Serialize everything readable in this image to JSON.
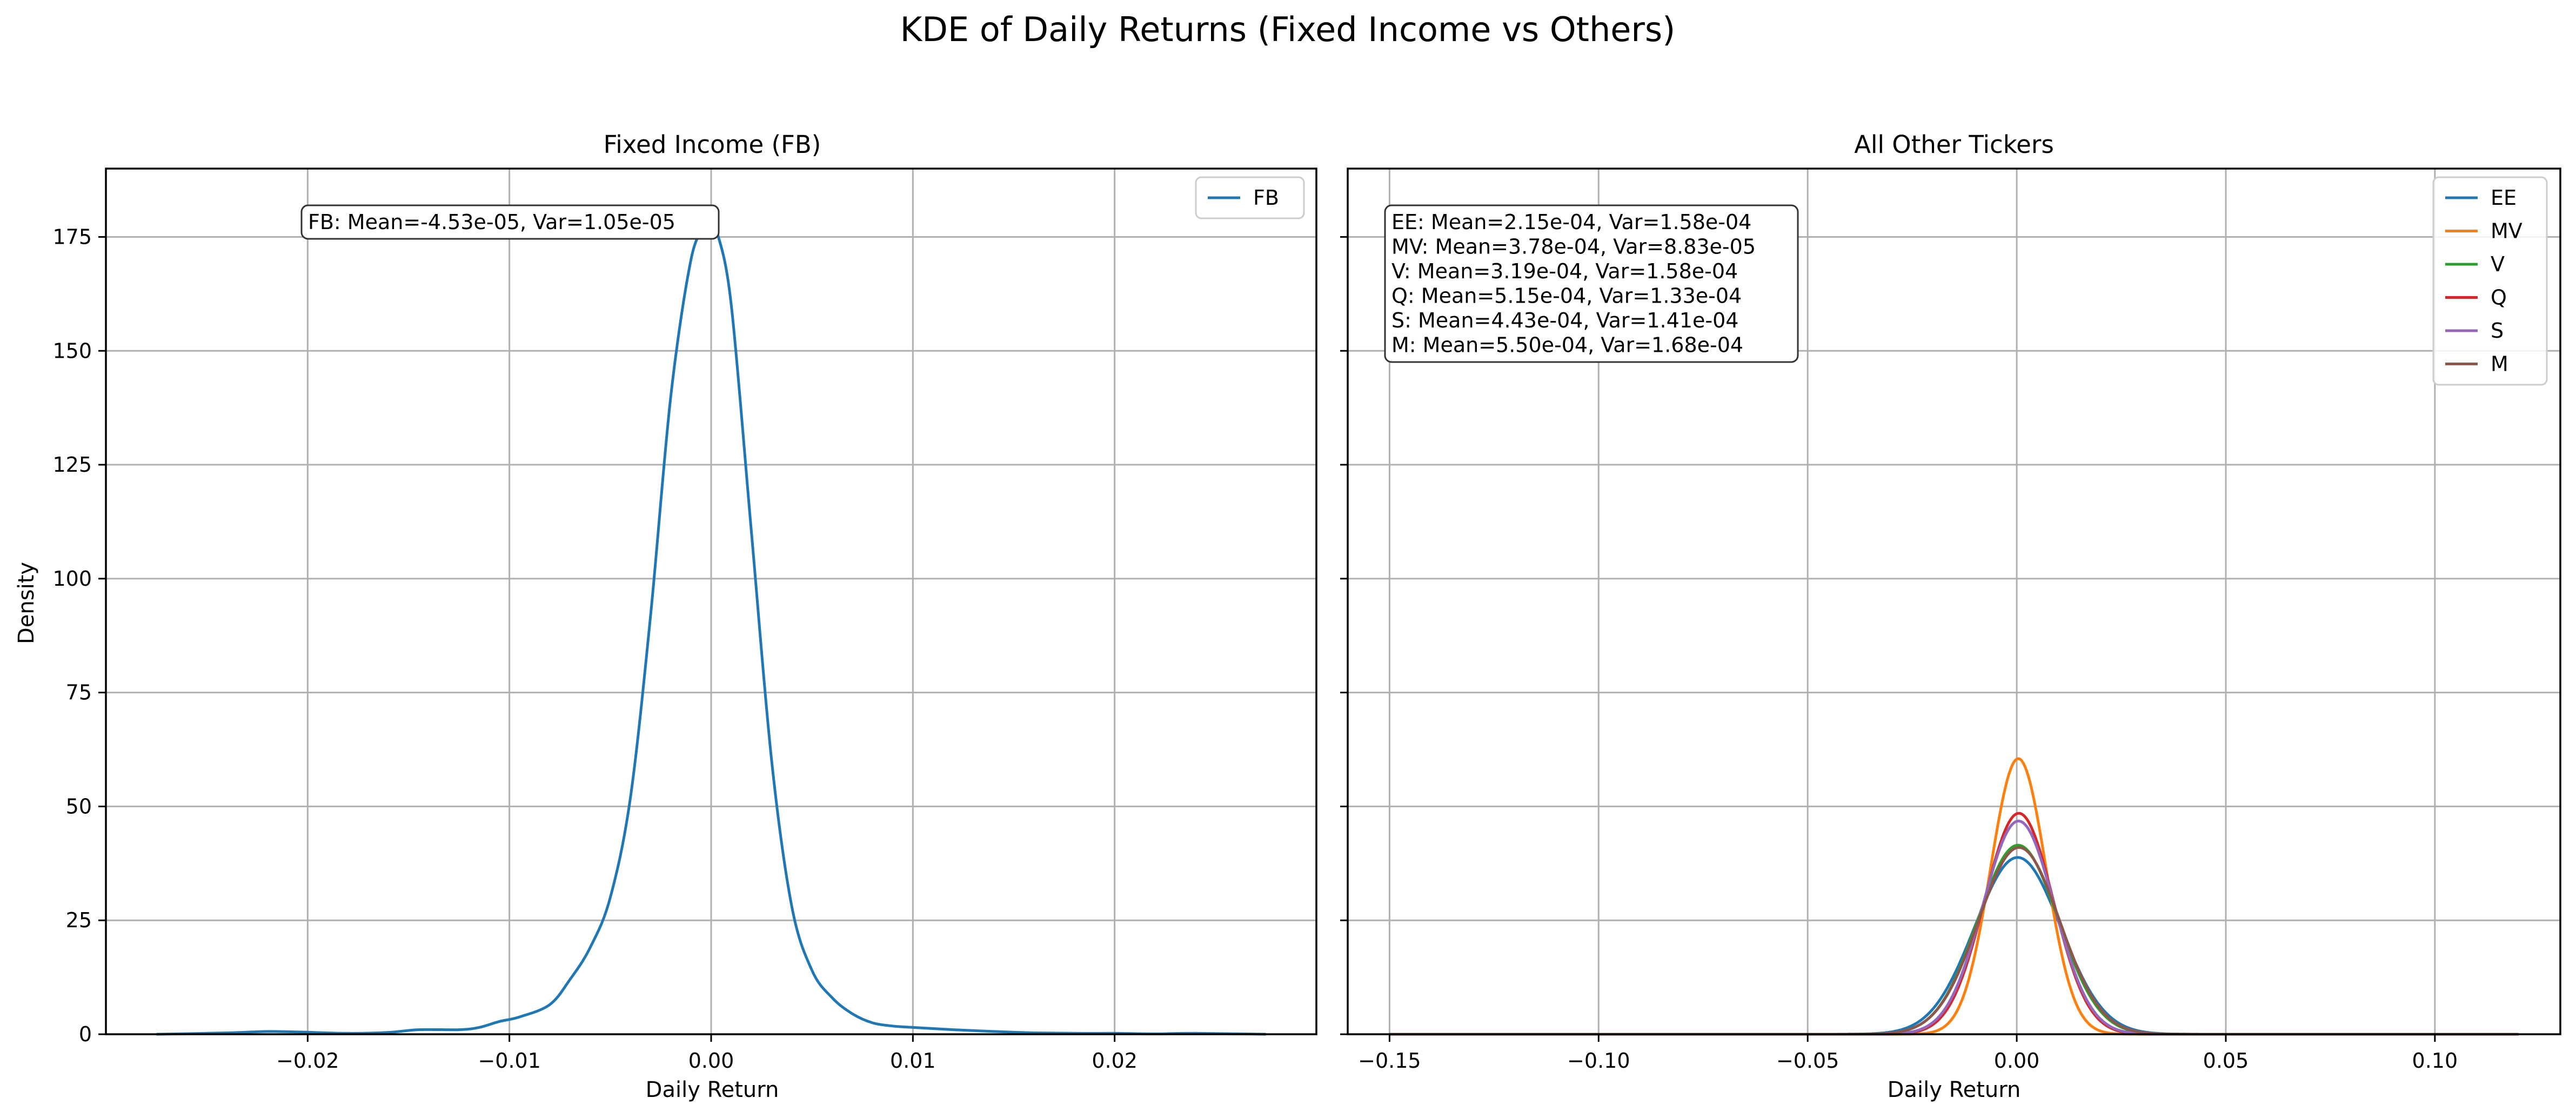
{
  "figure": {
    "suptitle": "KDE of Daily Returns (Fixed Income vs Others)"
  },
  "chart_data": [
    {
      "type": "line",
      "title": "Fixed Income (FB)",
      "xlabel": "Daily Return",
      "ylabel": "Density",
      "xlim": [
        -0.03,
        0.03
      ],
      "ylim": [
        0,
        190
      ],
      "xticks": [
        -0.02,
        -0.01,
        0.0,
        0.01,
        0.02
      ],
      "xtick_labels": [
        "−0.02",
        "−0.01",
        "0.00",
        "0.01",
        "0.02"
      ],
      "yticks": [
        0,
        25,
        50,
        75,
        100,
        125,
        150,
        175
      ],
      "ytick_labels": [
        "0",
        "25",
        "50",
        "75",
        "100",
        "125",
        "150",
        "175"
      ],
      "grid": true,
      "legend": "top-right",
      "annotation_lines": [
        "FB: Mean=-4.53e-05, Var=1.05e-05"
      ],
      "series": [
        {
          "name": "FB",
          "color": "#1f77b4",
          "x": [
            -0.0275,
            -0.024,
            -0.022,
            -0.0205,
            -0.018,
            -0.016,
            -0.0145,
            -0.0125,
            -0.0115,
            -0.0105,
            -0.0095,
            -0.008,
            -0.007,
            -0.006,
            -0.005,
            -0.004,
            -0.003,
            -0.002,
            -0.001,
            -0.0003,
            0.0,
            0.0003,
            0.001,
            0.002,
            0.003,
            0.004,
            0.005,
            0.006,
            0.007,
            0.008,
            0.009,
            0.01,
            0.012,
            0.014,
            0.016,
            0.018,
            0.02,
            0.022,
            0.024,
            0.0275
          ],
          "y": [
            0,
            0.3,
            0.6,
            0.5,
            0.2,
            0.4,
            1.0,
            1.0,
            1.5,
            2.8,
            3.8,
            6.5,
            12,
            19,
            30,
            52,
            92,
            140,
            170,
            177,
            178,
            176,
            160,
            110,
            60,
            28,
            14,
            8,
            4.5,
            2.5,
            1.8,
            1.5,
            1.0,
            0.6,
            0.3,
            0.2,
            0.2,
            0.1,
            0.2,
            0
          ]
        }
      ]
    },
    {
      "type": "line",
      "title": "All Other Tickers",
      "xlabel": "Daily Return",
      "xlim": [
        -0.16,
        0.13
      ],
      "ylim": [
        0,
        190
      ],
      "xticks": [
        -0.15,
        -0.1,
        -0.05,
        0.0,
        0.05,
        0.1
      ],
      "xtick_labels": [
        "−0.15",
        "−0.10",
        "−0.05",
        "0.00",
        "0.05",
        "0.10"
      ],
      "yticks": [
        0,
        25,
        50,
        75,
        100,
        125,
        150,
        175
      ],
      "grid": true,
      "legend": "top-right",
      "annotation_lines": [
        "EE: Mean=2.15e-04, Var=1.58e-04",
        "MV: Mean=3.78e-04, Var=8.83e-05",
        "V: Mean=3.19e-04, Var=1.58e-04",
        "Q: Mean=5.15e-04, Var=1.33e-04",
        "S: Mean=4.43e-04, Var=1.41e-04",
        "M: Mean=5.50e-04, Var=1.68e-04"
      ],
      "x_range": [
        -0.15,
        0.12
      ],
      "series": [
        {
          "name": "EE",
          "color": "#1f77b4",
          "peak": 38.8,
          "mean": 0.000215
        },
        {
          "name": "MV",
          "color": "#ff7f0e",
          "peak": 60.5,
          "mean": 0.000378
        },
        {
          "name": "V",
          "color": "#2ca02c",
          "peak": 41.5,
          "mean": 0.000319
        },
        {
          "name": "Q",
          "color": "#d62728",
          "peak": 48.5,
          "mean": 0.000515
        },
        {
          "name": "S",
          "color": "#9467bd",
          "peak": 46.8,
          "mean": 0.000443
        },
        {
          "name": "M",
          "color": "#8c564b",
          "peak": 41.0,
          "mean": 0.00055
        }
      ]
    }
  ]
}
